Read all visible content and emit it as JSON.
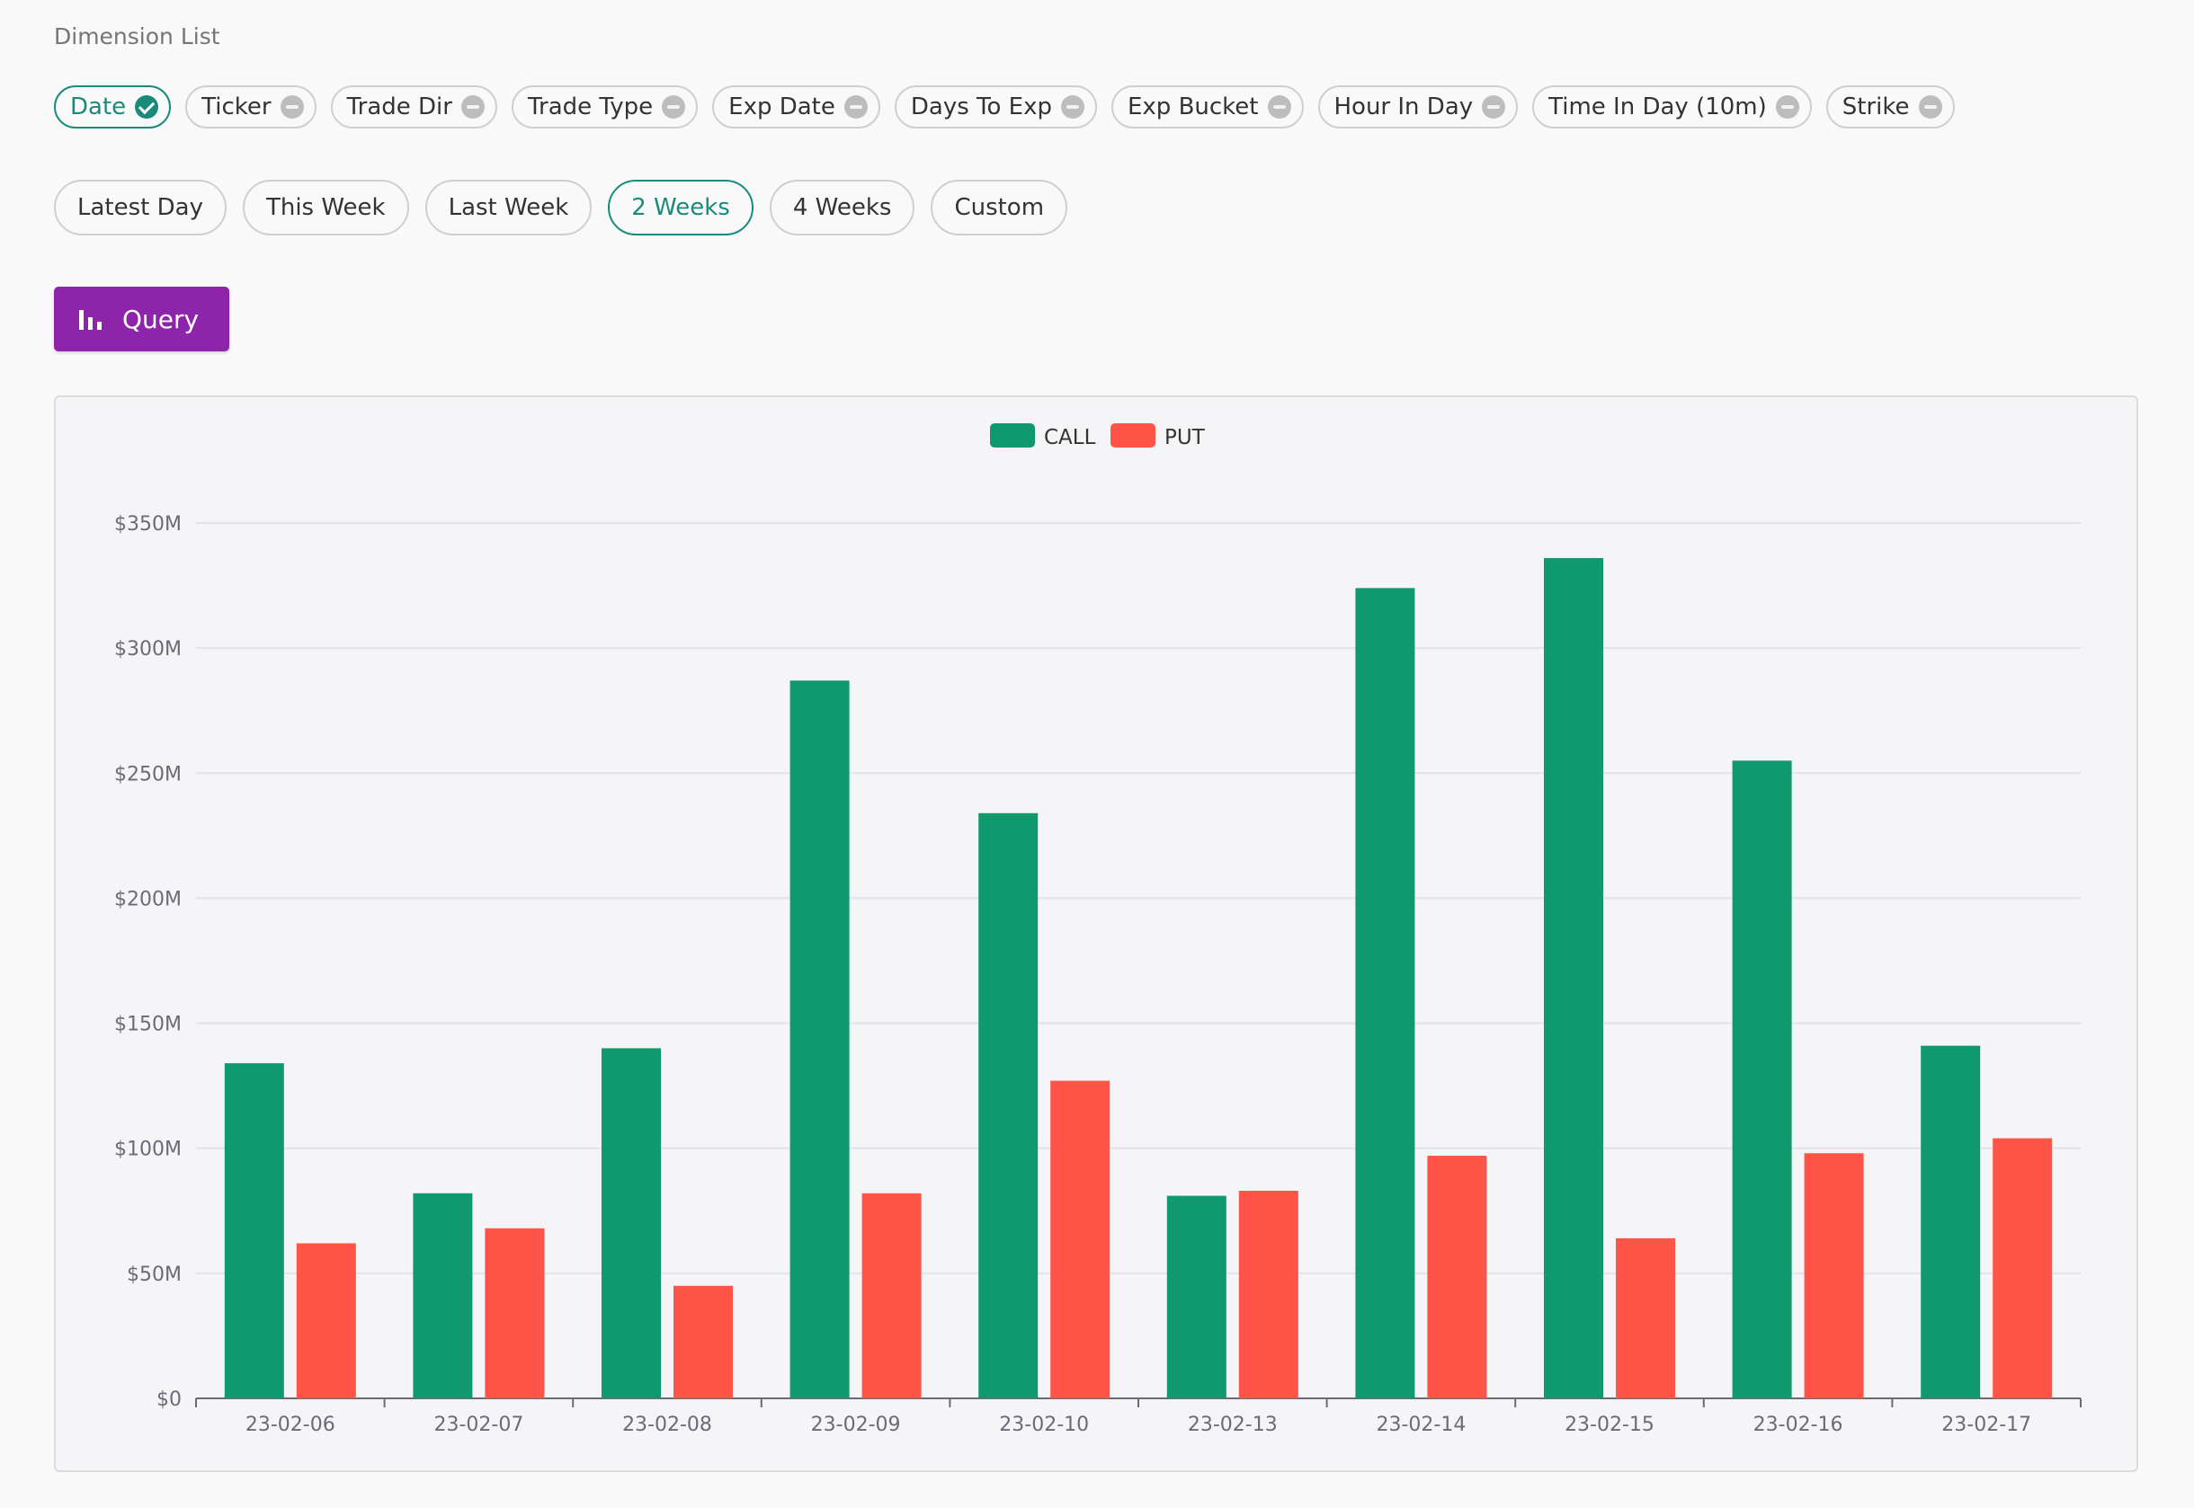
{
  "dimension_list": {
    "title": "Dimension List",
    "chips": [
      {
        "label": "Date",
        "state": "selected"
      },
      {
        "label": "Ticker",
        "state": "removable"
      },
      {
        "label": "Trade Dir",
        "state": "removable"
      },
      {
        "label": "Trade Type",
        "state": "removable"
      },
      {
        "label": "Exp Date",
        "state": "removable"
      },
      {
        "label": "Days To Exp",
        "state": "removable"
      },
      {
        "label": "Exp Bucket",
        "state": "removable"
      },
      {
        "label": "Hour In Day",
        "state": "removable"
      },
      {
        "label": "Time In Day (10m)",
        "state": "removable"
      },
      {
        "label": "Strike",
        "state": "removable"
      }
    ]
  },
  "range_selector": {
    "options": [
      "Latest Day",
      "This Week",
      "Last Week",
      "2 Weeks",
      "4 Weeks",
      "Custom"
    ],
    "selected": "2 Weeks"
  },
  "query_button": {
    "label": "Query",
    "icon": "bar-chart-icon"
  },
  "colors": {
    "accent": "#1a8a7a",
    "query_button": "#8e24aa",
    "call": "#10996c",
    "put": "#ff5447"
  },
  "chart_data": {
    "type": "bar",
    "categories": [
      "23-02-06",
      "23-02-07",
      "23-02-08",
      "23-02-09",
      "23-02-10",
      "23-02-13",
      "23-02-14",
      "23-02-15",
      "23-02-16",
      "23-02-17"
    ],
    "series": [
      {
        "name": "CALL",
        "color": "#10996c",
        "values": [
          134,
          82,
          140,
          287,
          234,
          81,
          324,
          336,
          255,
          141
        ]
      },
      {
        "name": "PUT",
        "color": "#ff5447",
        "values": [
          62,
          68,
          45,
          82,
          127,
          83,
          97,
          64,
          98,
          104
        ]
      }
    ],
    "value_unit": "$M",
    "ylim": [
      0,
      350
    ],
    "yticks": [
      0,
      50,
      100,
      150,
      200,
      250,
      300,
      350
    ],
    "ytick_labels": [
      "$0",
      "$50M",
      "$100M",
      "$150M",
      "$200M",
      "$250M",
      "$300M",
      "$350M"
    ],
    "legend": "top-center",
    "grid": true
  }
}
